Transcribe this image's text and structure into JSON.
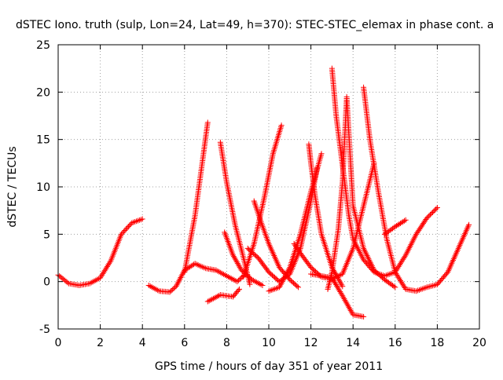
{
  "chart_data": {
    "type": "scatter",
    "title": "dSTEC Iono. truth (sulp, Lon=24, Lat=49, h=370): STEC-STEC_elemax in phase cont. a",
    "xlabel": "GPS time / hours of day 351 of year 2011",
    "ylabel": "dSTEC  / TECUs",
    "xlim": [
      0,
      20
    ],
    "ylim": [
      -5,
      25
    ],
    "xticks": [
      0,
      2,
      4,
      6,
      8,
      10,
      12,
      14,
      16,
      18,
      20
    ],
    "yticks": [
      -5,
      0,
      5,
      10,
      15,
      20,
      25
    ],
    "grid": true,
    "marker": "+",
    "color": "#ff0000",
    "series": [
      {
        "x": [
          0.0,
          0.5,
          1.0,
          1.5,
          2.0,
          2.5,
          3.0,
          3.5,
          4.0
        ],
        "y": [
          0.7,
          -0.2,
          -0.4,
          -0.2,
          0.4,
          2.2,
          5.0,
          6.2,
          6.6
        ]
      },
      {
        "x": [
          4.3,
          4.8,
          5.3,
          5.6,
          6.0,
          6.5,
          7.0,
          7.5,
          8.0,
          8.5,
          8.8
        ],
        "y": [
          -0.4,
          -1.0,
          -1.1,
          -0.5,
          1.2,
          1.9,
          1.4,
          1.2,
          0.6,
          0.0,
          0.6
        ]
      },
      {
        "x": [
          6.0,
          6.5,
          6.9,
          7.1
        ],
        "y": [
          1.0,
          7.0,
          13.5,
          16.8
        ]
      },
      {
        "x": [
          7.7,
          8.0,
          8.4,
          8.8,
          9.1
        ],
        "y": [
          14.7,
          10.5,
          6.0,
          2.5,
          -0.3
        ]
      },
      {
        "x": [
          7.1,
          7.7,
          8.3,
          8.6
        ],
        "y": [
          -2.1,
          -1.4,
          -1.6,
          -0.8
        ]
      },
      {
        "x": [
          7.9,
          8.3,
          8.7,
          9.2,
          9.7
        ],
        "y": [
          5.2,
          2.8,
          1.2,
          0.2,
          -0.4
        ]
      },
      {
        "x": [
          8.8,
          9.3,
          9.8,
          10.2,
          10.6
        ],
        "y": [
          0.5,
          4.0,
          9.0,
          13.5,
          16.5
        ]
      },
      {
        "x": [
          9.3,
          9.6,
          10.0,
          10.5,
          11.0,
          11.4
        ],
        "y": [
          8.5,
          6.5,
          4.0,
          1.5,
          0.2,
          -0.6
        ]
      },
      {
        "x": [
          9.0,
          9.5,
          10.0,
          10.5,
          11.0,
          11.5,
          12.0,
          12.3
        ],
        "y": [
          3.5,
          2.5,
          1.0,
          0.0,
          0.8,
          3.5,
          8.5,
          12.0
        ]
      },
      {
        "x": [
          10.0,
          10.5,
          11.0,
          11.5,
          12.0,
          12.5
        ],
        "y": [
          -1.0,
          -0.6,
          1.5,
          5.0,
          9.5,
          13.5
        ]
      },
      {
        "x": [
          11.9,
          12.0,
          12.2,
          12.5,
          13.0,
          13.5
        ],
        "y": [
          14.5,
          12.5,
          9.0,
          5.0,
          1.5,
          -0.5
        ]
      },
      {
        "x": [
          11.2,
          11.5,
          12.0,
          12.5,
          13.0,
          13.5,
          14.0,
          14.5,
          15.0
        ],
        "y": [
          4.0,
          3.0,
          1.5,
          0.5,
          0.3,
          0.8,
          3.5,
          8.0,
          12.5
        ]
      },
      {
        "x": [
          12.8,
          13.0,
          13.3,
          13.5,
          13.7,
          14.0,
          14.5,
          15.0,
          15.5,
          16.0
        ],
        "y": [
          -0.8,
          1.0,
          5.5,
          10.5,
          19.5,
          8.0,
          3.5,
          1.2,
          0.2,
          -0.6
        ]
      },
      {
        "x": [
          13.0,
          13.2,
          13.4,
          13.6,
          13.8,
          14.0,
          14.5,
          15.0,
          15.5,
          16.0,
          16.5,
          17.0,
          17.5,
          18.0
        ],
        "y": [
          22.5,
          17.5,
          14.0,
          10.5,
          7.0,
          4.5,
          2.3,
          1.0,
          0.6,
          1.0,
          2.8,
          5.0,
          6.7,
          7.8
        ]
      },
      {
        "x": [
          14.5,
          14.8,
          15.2,
          15.6,
          16.0,
          16.5,
          17.0,
          17.5,
          18.0,
          18.5,
          19.0,
          19.5
        ],
        "y": [
          20.5,
          15.0,
          9.5,
          4.5,
          1.0,
          -0.8,
          -1.0,
          -0.6,
          -0.3,
          1.0,
          3.5,
          6.0
        ]
      },
      {
        "x": [
          12.0,
          12.5,
          13.0,
          13.5,
          14.0,
          14.5
        ],
        "y": [
          0.8,
          0.6,
          0.4,
          -1.5,
          -3.5,
          -3.7
        ]
      },
      {
        "x": [
          15.5,
          16.0,
          16.5
        ],
        "y": [
          5.0,
          5.8,
          6.5
        ]
      }
    ]
  }
}
